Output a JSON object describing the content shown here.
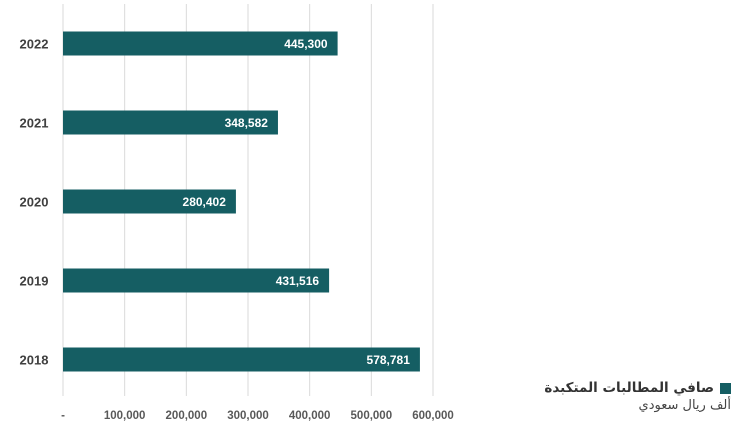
{
  "chart_data": {
    "type": "bar",
    "orientation": "horizontal",
    "categories": [
      "2022",
      "2021",
      "2020",
      "2019",
      "2018"
    ],
    "series": [
      {
        "name": "صافي المطالبات المتكبدة",
        "values": [
          445300,
          348582,
          280402,
          431516,
          578781
        ],
        "value_labels": [
          "445,300",
          "348,582",
          "280,402",
          "431,516",
          "578,781"
        ]
      }
    ],
    "x_ticks": [
      {
        "value": 0,
        "label": "-"
      },
      {
        "value": 100000,
        "label": "100,000"
      },
      {
        "value": 200000,
        "label": "200,000"
      },
      {
        "value": 300000,
        "label": "300,000"
      },
      {
        "value": 400000,
        "label": "400,000"
      },
      {
        "value": 500000,
        "label": "500,000"
      },
      {
        "value": 600000,
        "label": "600,000"
      }
    ],
    "xlim": [
      0,
      600000
    ],
    "grid": true,
    "legend_position": "bottom-right",
    "unit_label": "ألف ريال سعودي",
    "bar_color": "#155E63"
  }
}
